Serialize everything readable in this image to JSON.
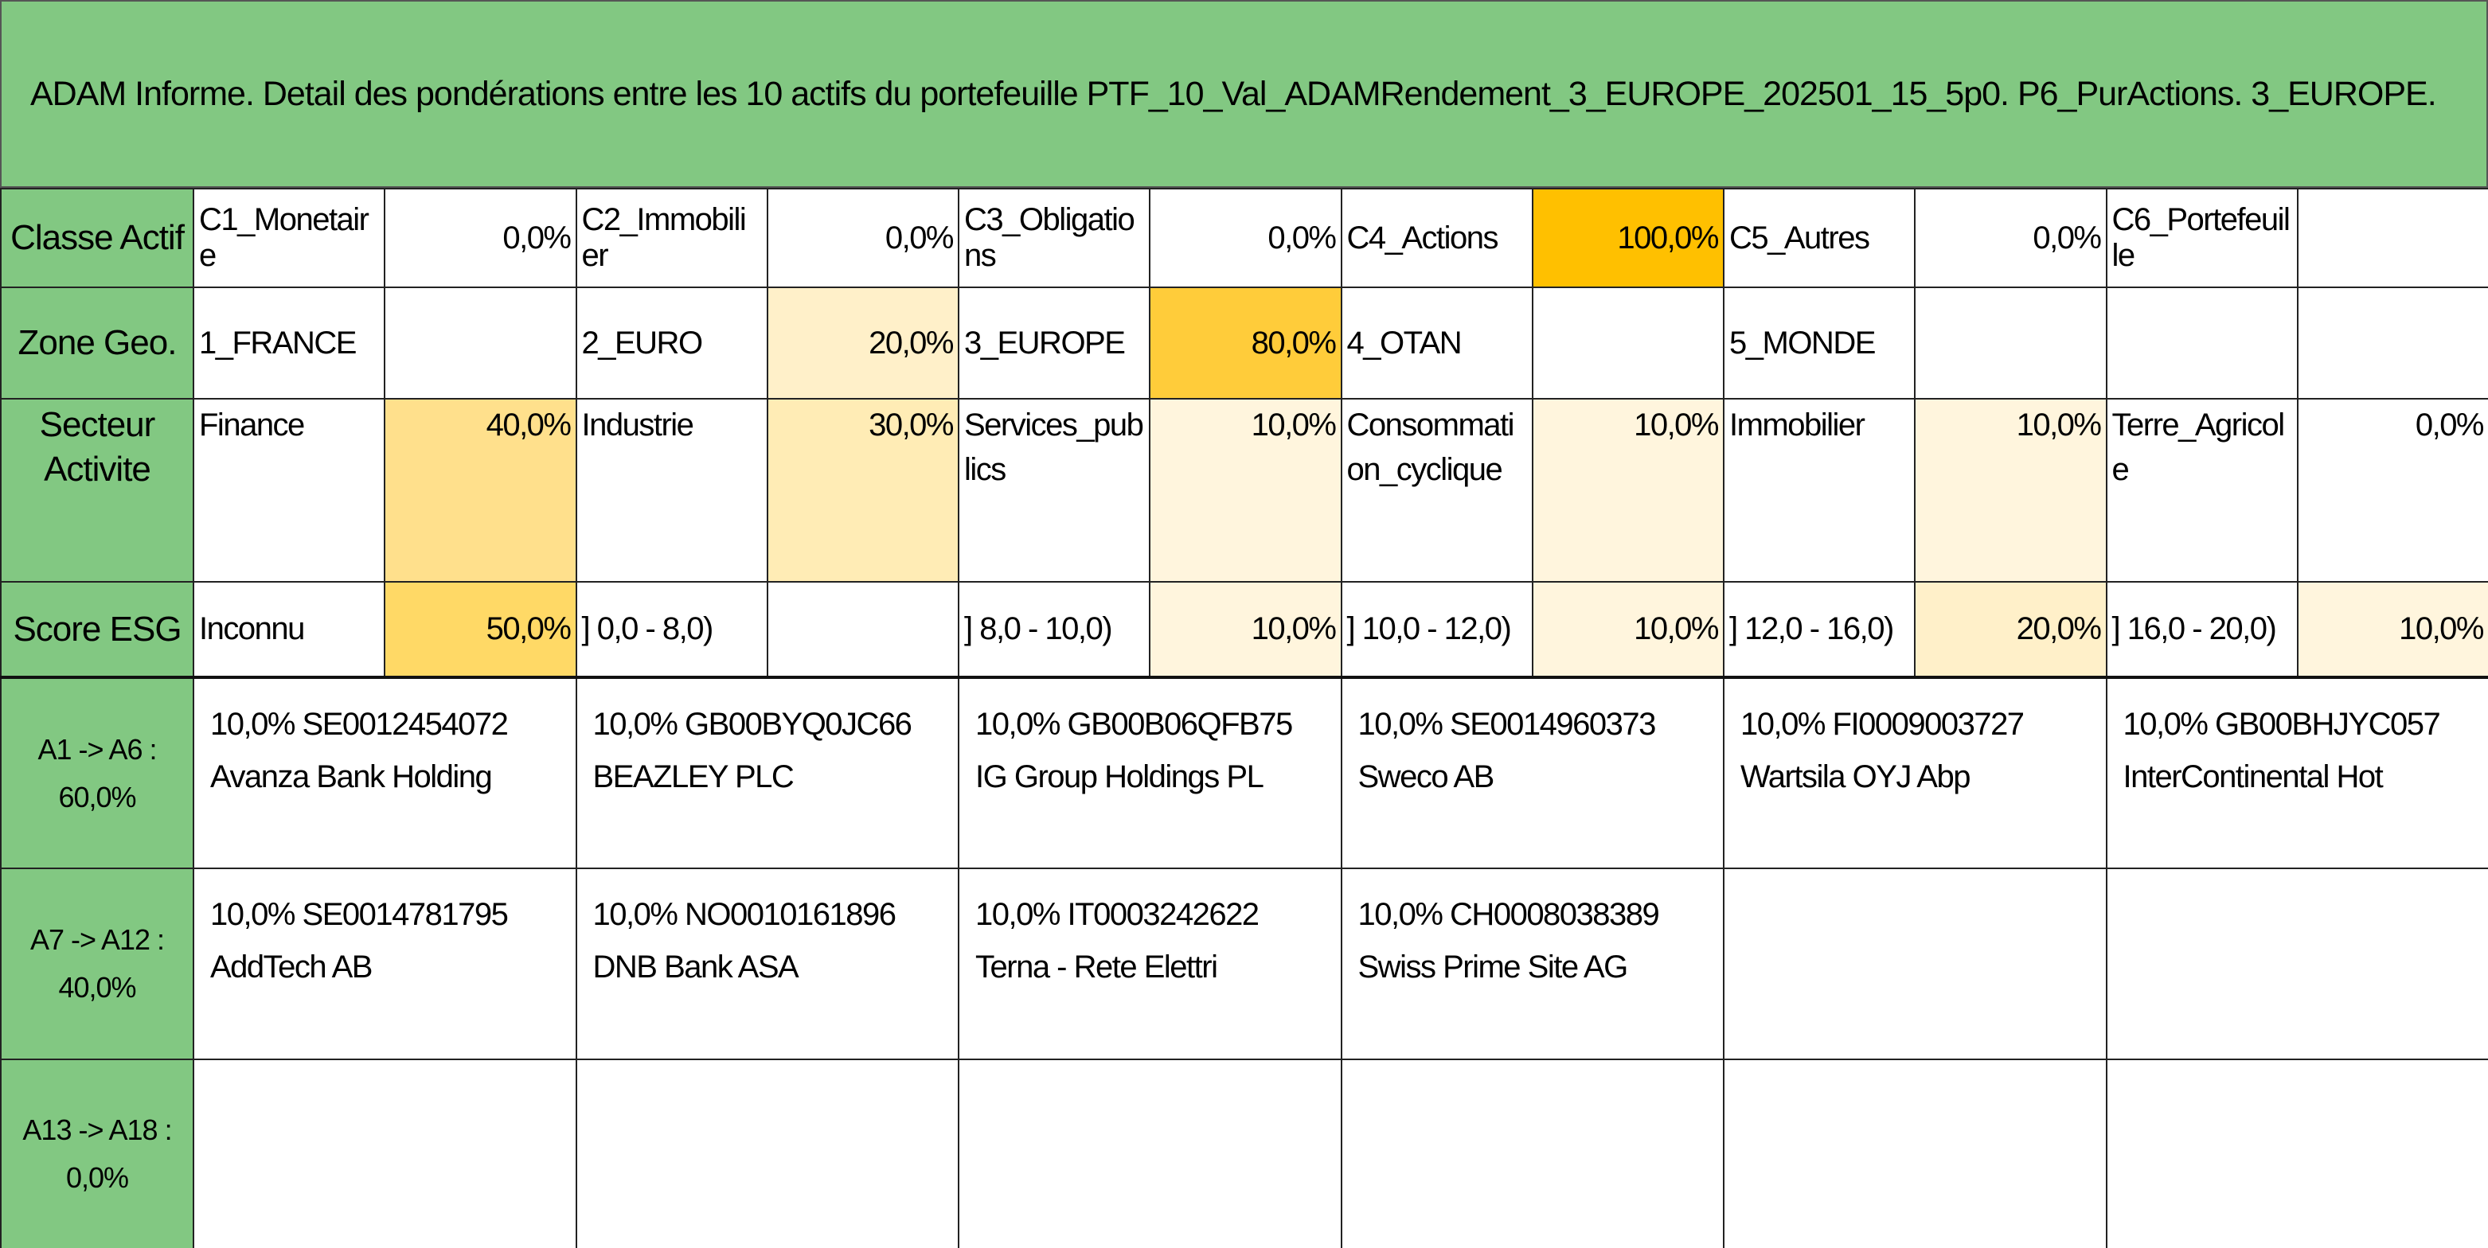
{
  "header": {
    "title": "ADAM Informe. Detail des pondérations entre les 10 actifs du portefeuille PTF_10_Val_ADAMRendement_3_EUROPE_202501_15_5p0. P6_PurActions. 3_EUROPE."
  },
  "table": {
    "rows": [
      {
        "label": "Classe Actif",
        "cells": [
          {
            "name": "C1_Monetaire",
            "value": "0,0%"
          },
          {
            "name": "C2_Immobilier",
            "value": "0,0%"
          },
          {
            "name": "C3_Obligations",
            "value": "0,0%"
          },
          {
            "name": "C4_Actions",
            "value": "100,0%"
          },
          {
            "name": "C5_Autres",
            "value": "0,0%"
          },
          {
            "name": "C6_Portefeuille"
          }
        ]
      },
      {
        "label": "Zone Geo.",
        "cells": [
          {
            "name": "1_FRANCE"
          },
          {
            "name": "2_EURO",
            "value": "20,0%"
          },
          {
            "name": "3_EUROPE",
            "value": "80,0%"
          },
          {
            "name": "4_OTAN"
          },
          {
            "name": "5_MONDE"
          }
        ]
      },
      {
        "label": "Secteur Activite",
        "cells": [
          {
            "name": "Finance",
            "value": "40,0%"
          },
          {
            "name": "Industrie",
            "value": "30,0%"
          },
          {
            "name": "Services_publics",
            "value": "10,0%"
          },
          {
            "name": "Consommation_cyclique",
            "value": "10,0%"
          },
          {
            "name": "Immobilier",
            "value": "10,0%"
          },
          {
            "name": "Terre_Agricole",
            "value": "0,0%"
          }
        ]
      },
      {
        "label": "Score ESG",
        "cells": [
          {
            "name": "Inconnu",
            "value": "50,0%"
          },
          {
            "name": "] 0,0 - 8,0)"
          },
          {
            "name": "] 8,0 - 10,0)",
            "value": "10,0%"
          },
          {
            "name": "] 10,0 - 12,0)",
            "value": "10,0%"
          },
          {
            "name": "] 12,0 - 16,0)",
            "value": "20,0%"
          },
          {
            "name": "] 16,0 - 20,0)",
            "value": "10,0%"
          }
        ]
      }
    ]
  },
  "assets": [
    {
      "label": "A1 -> A6 :",
      "total": "60,0%",
      "items": [
        {
          "weight": "10,0%",
          "isin": "SE0012454072",
          "name": "Avanza Bank Holding"
        },
        {
          "weight": "10,0%",
          "isin": "GB00BYQ0JC66",
          "name": "BEAZLEY PLC"
        },
        {
          "weight": "10,0%",
          "isin": "GB00B06QFB75",
          "name": "IG Group Holdings PL"
        },
        {
          "weight": "10,0%",
          "isin": "SE0014960373",
          "name": "Sweco AB"
        },
        {
          "weight": "10,0%",
          "isin": "FI0009003727",
          "name": "Wartsila OYJ Abp"
        },
        {
          "weight": "10,0%",
          "isin": "GB00BHJYC057",
          "name": "InterContinental Hot"
        }
      ]
    },
    {
      "label": "A7 -> A12 :",
      "total": "40,0%",
      "items": [
        {
          "weight": "10,0%",
          "isin": "SE0014781795",
          "name": "AddTech AB"
        },
        {
          "weight": "10,0%",
          "isin": "NO0010161896",
          "name": "DNB Bank ASA"
        },
        {
          "weight": "10,0%",
          "isin": "IT0003242622",
          "name": "Terna - Rete Elettri"
        },
        {
          "weight": "10,0%",
          "isin": "CH0008038389",
          "name": "Swiss Prime Site AG"
        }
      ]
    },
    {
      "label": "A13 -> A18 :",
      "total": "0,0%",
      "items": []
    }
  ]
}
